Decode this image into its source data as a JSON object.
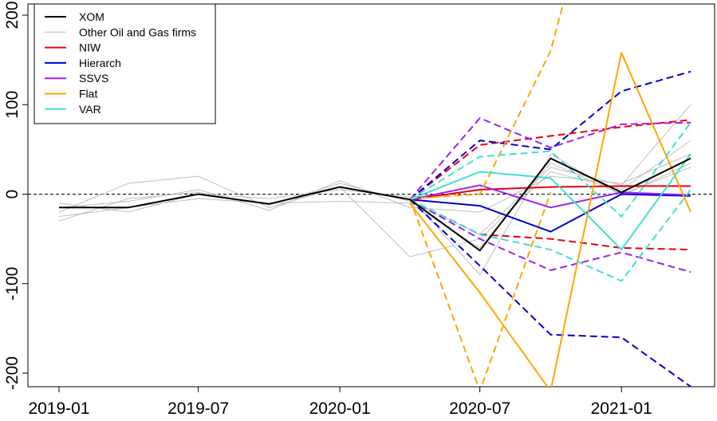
{
  "chart_data": {
    "type": "line",
    "title": "",
    "xlabel": "",
    "ylabel": "",
    "xlim": [
      "2019-01-01",
      "2021-04-01"
    ],
    "ylim": [
      -200,
      200
    ],
    "x_ticks": [
      "2019-01-01",
      "2019-07-01",
      "2020-01-01",
      "2020-07-01",
      "2021-01-01"
    ],
    "x_tick_labels": [
      "2019-01",
      "2019-07",
      "2020-01",
      "2020-07",
      "2021-01"
    ],
    "y_ticks": [
      -200,
      -100,
      0,
      100,
      200
    ],
    "y_tick_labels": [
      "-200",
      "-100",
      "0",
      "100",
      "200"
    ],
    "reference_line": {
      "y": 0,
      "style": "dashed"
    },
    "legend": {
      "position": "top-left",
      "entries": [
        {
          "label": "XOM",
          "color": "#000000"
        },
        {
          "label": "Other Oil and Gas firms",
          "color": "#bebebe"
        },
        {
          "label": "NIW",
          "color": "#e8000b"
        },
        {
          "label": "Hierarch",
          "color": "#0000cd"
        },
        {
          "label": "SSVS",
          "color": "#a020f0"
        },
        {
          "label": "Flat",
          "color": "#ffa500"
        },
        {
          "label": "VAR",
          "color": "#40e0d0"
        }
      ]
    },
    "other_firms": [
      {
        "x": [
          "2019-01-01",
          "2019-04-01",
          "2019-07-01",
          "2019-10-01",
          "2020-01-01",
          "2020-04-01",
          "2020-07-01",
          "2020-10-01",
          "2021-01-01",
          "2021-04-01"
        ],
        "y": [
          -30,
          -5,
          2,
          -12,
          12,
          -8,
          -45,
          30,
          10,
          100
        ]
      },
      {
        "x": [
          "2019-01-01",
          "2019-04-01",
          "2019-07-01",
          "2019-10-01",
          "2020-01-01",
          "2020-04-01",
          "2020-07-01",
          "2020-10-01",
          "2021-01-01",
          "2021-04-01"
        ],
        "y": [
          -20,
          12,
          20,
          -15,
          8,
          -70,
          -50,
          25,
          5,
          60
        ]
      },
      {
        "x": [
          "2019-01-01",
          "2019-04-01",
          "2019-07-01",
          "2019-10-01",
          "2020-01-01",
          "2020-04-01",
          "2020-07-01",
          "2020-10-01",
          "2021-01-01",
          "2021-04-01"
        ],
        "y": [
          -10,
          -20,
          0,
          -5,
          5,
          -3,
          -90,
          45,
          -2,
          35
        ]
      },
      {
        "x": [
          "2019-01-01",
          "2019-04-01",
          "2019-07-01",
          "2019-10-01",
          "2020-01-01",
          "2020-04-01",
          "2020-07-01",
          "2020-10-01",
          "2021-01-01",
          "2021-04-01"
        ],
        "y": [
          -15,
          -8,
          5,
          -18,
          15,
          -15,
          -20,
          20,
          12,
          45
        ]
      },
      {
        "x": [
          "2019-01-01",
          "2019-04-01",
          "2019-07-01",
          "2019-10-01",
          "2020-01-01",
          "2020-04-01",
          "2020-07-01",
          "2020-10-01",
          "2021-01-01",
          "2021-04-01"
        ],
        "y": [
          -25,
          -15,
          -5,
          -10,
          -8,
          -10,
          -60,
          35,
          0,
          30
        ]
      }
    ],
    "series": [
      {
        "name": "XOM",
        "style": "solid",
        "x": [
          "2019-01-01",
          "2019-04-01",
          "2019-07-01",
          "2019-10-01",
          "2020-01-01",
          "2020-04-01",
          "2020-07-01",
          "2020-10-01",
          "2021-01-01",
          "2021-04-01"
        ],
        "y": [
          -15,
          -15,
          0,
          -11,
          8,
          -6,
          -63,
          40,
          2,
          40
        ]
      },
      {
        "name": "NIW",
        "style": "solid",
        "x": [
          "2020-04-01",
          "2020-07-01",
          "2020-10-01",
          "2021-01-01",
          "2021-04-01"
        ],
        "y": [
          -6,
          5,
          8,
          9,
          9
        ]
      },
      {
        "name": "NIW",
        "style": "dashed",
        "x": [
          "2020-04-01",
          "2020-07-01",
          "2020-10-01",
          "2021-01-01",
          "2021-04-01"
        ],
        "y": [
          -6,
          55,
          65,
          75,
          83
        ]
      },
      {
        "name": "NIW",
        "style": "dashed",
        "x": [
          "2020-04-01",
          "2020-07-01",
          "2020-10-01",
          "2021-01-01",
          "2021-04-01"
        ],
        "y": [
          -6,
          -45,
          -50,
          -60,
          -62
        ]
      },
      {
        "name": "Hierarch",
        "style": "solid",
        "x": [
          "2020-04-01",
          "2020-07-01",
          "2020-10-01",
          "2021-01-01",
          "2021-04-01"
        ],
        "y": [
          -6,
          -13,
          -42,
          0,
          -2
        ]
      },
      {
        "name": "Hierarch",
        "style": "dashed",
        "x": [
          "2020-04-01",
          "2020-07-01",
          "2020-10-01",
          "2021-01-01",
          "2021-04-01"
        ],
        "y": [
          -6,
          60,
          50,
          115,
          137
        ]
      },
      {
        "name": "Hierarch",
        "style": "dashed",
        "x": [
          "2020-04-01",
          "2020-07-01",
          "2020-10-01",
          "2021-01-01",
          "2021-04-01"
        ],
        "y": [
          -6,
          -80,
          -157,
          -160,
          -215
        ]
      },
      {
        "name": "SSVS",
        "style": "solid",
        "x": [
          "2020-04-01",
          "2020-07-01",
          "2020-10-01",
          "2021-01-01",
          "2021-04-01"
        ],
        "y": [
          -6,
          10,
          -15,
          2,
          -1
        ]
      },
      {
        "name": "SSVS",
        "style": "dashed",
        "x": [
          "2020-04-01",
          "2020-07-01",
          "2020-10-01",
          "2021-01-01",
          "2021-04-01"
        ],
        "y": [
          -6,
          85,
          52,
          78,
          80
        ]
      },
      {
        "name": "SSVS",
        "style": "dashed",
        "x": [
          "2020-04-01",
          "2020-07-01",
          "2020-10-01",
          "2021-01-01",
          "2021-04-01"
        ],
        "y": [
          -6,
          -50,
          -85,
          -65,
          -87
        ]
      },
      {
        "name": "Flat",
        "style": "solid",
        "x": [
          "2020-04-01",
          "2020-07-01",
          "2020-10-01",
          "2021-01-01",
          "2021-04-01"
        ],
        "y": [
          -10,
          -110,
          -220,
          158,
          -20
        ]
      },
      {
        "name": "Flat",
        "style": "dashed",
        "x": [
          "2020-04-01",
          "2020-07-01",
          "2020-10-01"
        ],
        "y": [
          -5,
          -220,
          2
        ]
      },
      {
        "name": "Flat",
        "style": "dashed",
        "x": [
          "2020-04-01",
          "2020-07-01",
          "2020-10-01",
          "2020-11-01"
        ],
        "y": [
          -5,
          0,
          160,
          260
        ]
      },
      {
        "name": "VAR",
        "style": "solid",
        "x": [
          "2020-04-01",
          "2020-07-01",
          "2020-10-01",
          "2021-01-01",
          "2021-04-01"
        ],
        "y": [
          -6,
          25,
          18,
          -62,
          45
        ]
      },
      {
        "name": "VAR",
        "style": "dashed",
        "x": [
          "2020-04-01",
          "2020-07-01",
          "2020-10-01",
          "2021-01-01",
          "2021-04-01"
        ],
        "y": [
          -6,
          42,
          48,
          -25,
          80
        ]
      },
      {
        "name": "VAR",
        "style": "dashed",
        "x": [
          "2020-04-01",
          "2020-07-01",
          "2020-10-01",
          "2021-01-01",
          "2021-04-01"
        ],
        "y": [
          -6,
          -45,
          -62,
          -97,
          5
        ]
      }
    ]
  }
}
